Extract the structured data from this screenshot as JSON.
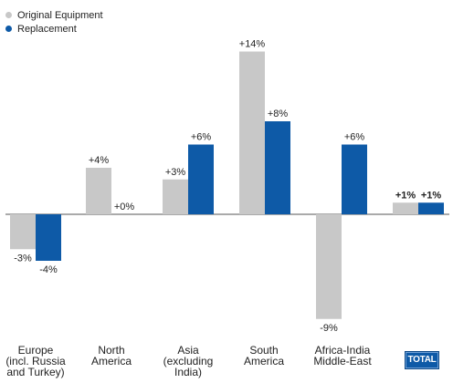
{
  "chart_data": {
    "type": "bar",
    "legend_position": "top-left",
    "categories": [
      "Europe\n(incl. Russia\nand Turkey)",
      "North\nAmerica",
      "Asia\n(excluding\nIndia)",
      "South\nAmerica",
      "Africa-India\nMiddle-East",
      "TOTAL"
    ],
    "series": [
      {
        "name": "Original Equipment",
        "color": "#c8c8c8",
        "values": [
          -3,
          4,
          3,
          14,
          -9,
          1
        ],
        "labels": [
          "-3%",
          "+4%",
          "+3%",
          "+14%",
          "-9%",
          "+1%"
        ]
      },
      {
        "name": "Replacement",
        "color": "#0e5aa7",
        "values": [
          -4,
          0,
          6,
          8,
          6,
          1
        ],
        "labels": [
          "-4%",
          "+0%",
          "+6%",
          "+8%",
          "+6%",
          "+1%"
        ]
      }
    ],
    "ylim": [
      -9,
      14
    ],
    "grid": false,
    "title": "",
    "xlabel": "",
    "ylabel": ""
  }
}
